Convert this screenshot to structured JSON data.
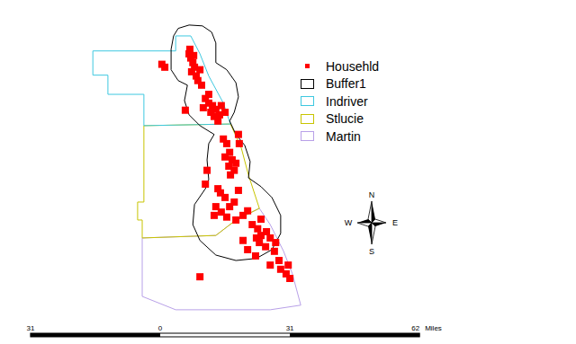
{
  "chart_data": {
    "type": "map",
    "xlim": [
      -38.3,
      99.4
    ],
    "ylim": [
      0,
      82.4
    ],
    "tick_labels": false,
    "layers": [
      {
        "name": "Househld",
        "type": "scatter",
        "marker": "square",
        "color": "#ff0000",
        "points": [
          [
            0.4,
            67.0
          ],
          [
            1.1,
            66.3
          ],
          [
            6.9,
            69.5
          ],
          [
            7.3,
            68.5
          ],
          [
            7.8,
            67.4
          ],
          [
            8.2,
            66.3
          ],
          [
            7.5,
            65.2
          ],
          [
            8.6,
            64.2
          ],
          [
            8.0,
            69.1
          ],
          [
            7.1,
            70.6
          ],
          [
            9.5,
            65.7
          ],
          [
            9.0,
            63.1
          ],
          [
            9.9,
            62.0
          ],
          [
            10.8,
            58.8
          ],
          [
            11.6,
            57.7
          ],
          [
            12.5,
            57.1
          ],
          [
            13.3,
            56.2
          ],
          [
            12.1,
            55.5
          ],
          [
            12.9,
            54.5
          ],
          [
            14.2,
            54.9
          ],
          [
            14.6,
            57.1
          ],
          [
            11.6,
            59.8
          ],
          [
            10.3,
            56.6
          ],
          [
            15.5,
            55.5
          ],
          [
            13.8,
            53.4
          ],
          [
            15.1,
            49.1
          ],
          [
            15.9,
            48.0
          ],
          [
            16.6,
            45.9
          ],
          [
            17.2,
            44.1
          ],
          [
            16.4,
            42.6
          ],
          [
            17.7,
            41.6
          ],
          [
            18.1,
            43.3
          ],
          [
            15.5,
            44.8
          ],
          [
            16.8,
            40.5
          ],
          [
            18.9,
            48.0
          ],
          [
            14.4,
            36.2
          ],
          [
            15.5,
            35.1
          ],
          [
            13.3,
            32.9
          ],
          [
            14.6,
            31.6
          ],
          [
            16.6,
            32.9
          ],
          [
            17.7,
            34.0
          ],
          [
            15.9,
            30.4
          ],
          [
            18.1,
            29.7
          ],
          [
            12.9,
            30.8
          ],
          [
            19.8,
            30.8
          ],
          [
            20.9,
            31.9
          ],
          [
            18.7,
            36.8
          ],
          [
            22.0,
            28.6
          ],
          [
            23.3,
            27.6
          ],
          [
            24.1,
            26.0
          ],
          [
            25.4,
            26.9
          ],
          [
            23.7,
            24.3
          ],
          [
            25.2,
            23.3
          ],
          [
            26.3,
            25.4
          ],
          [
            27.3,
            22.2
          ],
          [
            28.4,
            20.0
          ],
          [
            26.3,
            18.9
          ],
          [
            28.8,
            17.9
          ],
          [
            30.1,
            16.8
          ],
          [
            22.8,
            21.1
          ],
          [
            20.9,
            22.6
          ],
          [
            19.8,
            24.8
          ],
          [
            24.1,
            29.9
          ],
          [
            9.5,
            16.1
          ],
          [
            10.8,
            38.3
          ],
          [
            6.0,
            56.0
          ],
          [
            11.2,
            41.6
          ],
          [
            18.7,
            50.2
          ],
          [
            30.6,
            18.9
          ],
          [
            31.0,
            15.7
          ],
          [
            27.6,
            24.3
          ],
          [
            23.0,
            25.4
          ],
          [
            13.8,
            37.2
          ]
        ]
      },
      {
        "name": "Buffer1",
        "type": "polygon",
        "color": "#000000",
        "points": [
          [
            3.2,
            73.8
          ],
          [
            4.3,
            75.6
          ],
          [
            6.9,
            76.4
          ],
          [
            10.1,
            76.2
          ],
          [
            12.3,
            74.7
          ],
          [
            13.3,
            72.1
          ],
          [
            13.3,
            67.4
          ],
          [
            15.9,
            65.7
          ],
          [
            18.1,
            62.6
          ],
          [
            18.7,
            59.2
          ],
          [
            17.7,
            55.5
          ],
          [
            16.6,
            53.4
          ],
          [
            18.1,
            50.2
          ],
          [
            20.2,
            47.6
          ],
          [
            21.5,
            43.7
          ],
          [
            21.1,
            39.8
          ],
          [
            24.1,
            37.7
          ],
          [
            26.7,
            35.1
          ],
          [
            28.8,
            30.8
          ],
          [
            28.8,
            26.5
          ],
          [
            26.7,
            22.6
          ],
          [
            23.0,
            20.5
          ],
          [
            18.1,
            20.0
          ],
          [
            13.3,
            21.3
          ],
          [
            9.5,
            24.8
          ],
          [
            7.8,
            28.6
          ],
          [
            8.2,
            33.4
          ],
          [
            10.8,
            37.2
          ],
          [
            11.6,
            39.4
          ],
          [
            11.2,
            44.1
          ],
          [
            11.6,
            48.0
          ],
          [
            12.9,
            50.2
          ],
          [
            9.5,
            52.3
          ],
          [
            6.9,
            54.9
          ],
          [
            5.8,
            58.3
          ],
          [
            6.5,
            62.0
          ],
          [
            4.3,
            63.1
          ],
          [
            2.6,
            65.7
          ],
          [
            2.6,
            70.6
          ]
        ]
      },
      {
        "name": "Indriver",
        "type": "polygon",
        "color": "#3ec8e0",
        "points": [
          [
            -16.1,
            70.2
          ],
          [
            3.7,
            70.2
          ],
          [
            3.7,
            73.8
          ],
          [
            7.3,
            73.8
          ],
          [
            9.5,
            69.5
          ],
          [
            11.6,
            64.2
          ],
          [
            15.1,
            57.7
          ],
          [
            16.8,
            52.7
          ],
          [
            -3.9,
            52.3
          ],
          [
            -3.9,
            59.8
          ],
          [
            -12.5,
            59.8
          ],
          [
            -12.5,
            64.4
          ],
          [
            -16.1,
            64.4
          ]
        ]
      },
      {
        "name": "Stlucie",
        "type": "polygon",
        "color": "#c8c400",
        "points": [
          [
            -3.9,
            52.3
          ],
          [
            16.8,
            52.7
          ],
          [
            19.4,
            46.9
          ],
          [
            21.1,
            40.5
          ],
          [
            23.7,
            32.5
          ],
          [
            18.1,
            29.7
          ],
          [
            13.3,
            26.0
          ],
          [
            -4.3,
            25.4
          ],
          [
            -4.3,
            29.7
          ],
          [
            -5.4,
            29.7
          ],
          [
            -5.4,
            34.0
          ],
          [
            -3.9,
            34.0
          ]
        ]
      },
      {
        "name": "Martin",
        "type": "polygon",
        "color": "#b8a0e8",
        "points": [
          [
            -4.3,
            25.4
          ],
          [
            13.3,
            26.0
          ],
          [
            18.1,
            29.7
          ],
          [
            23.7,
            32.5
          ],
          [
            26.3,
            28.6
          ],
          [
            29.5,
            22.2
          ],
          [
            31.6,
            16.8
          ],
          [
            33.6,
            9.3
          ],
          [
            26.3,
            8.2
          ],
          [
            3.7,
            8.2
          ],
          [
            -4.3,
            11.4
          ]
        ]
      }
    ],
    "compass": {
      "north": "N",
      "south": "S",
      "east": "E",
      "west": "W"
    },
    "scale_bar": {
      "ticks": [
        {
          "value": -31,
          "label": "31"
        },
        0,
        31,
        62
      ],
      "unit": "Miles"
    }
  }
}
